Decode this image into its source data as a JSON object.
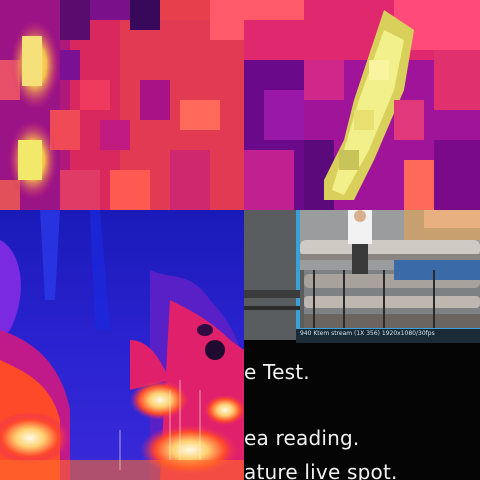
{
  "panels": {
    "top_left": {
      "palette": [
        "#6a0a7a",
        "#b4147c",
        "#e02d6a",
        "#ff4f7a",
        "#f6e26a"
      ]
    },
    "top_right": {
      "palette": [
        "#5a0a8a",
        "#a01496",
        "#e0287a",
        "#ffd84a",
        "#f4f08a"
      ]
    },
    "bottom_left": {
      "palette": [
        "#1a1ab4",
        "#3a2adc",
        "#7a2ae0",
        "#e02a6a",
        "#ff5a2a",
        "#fff2c8"
      ]
    },
    "bottom_right": {
      "caption": "940 Ktem stream (1X 356) 1920x1080/30fps",
      "text_lines": [
        "e Test.",
        "ea reading.",
        "ature live spot."
      ]
    }
  }
}
